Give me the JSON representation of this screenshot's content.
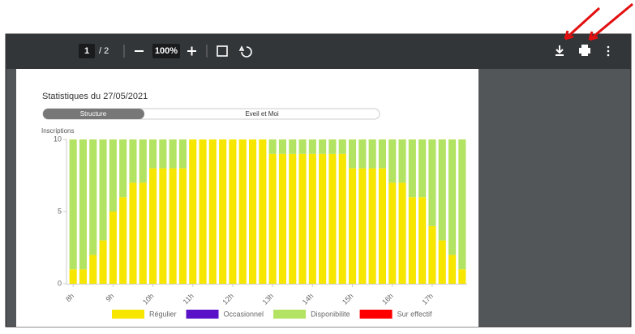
{
  "toolbar": {
    "page": "1",
    "page_count": "/ 2",
    "zoom": "100%"
  },
  "tabs": [
    "Structure",
    "Eveil et Moi"
  ],
  "chart_data": {
    "type": "bar",
    "stacked": true,
    "title": "Statistiques du 27/05/2021",
    "y_label": "Inscriptions",
    "categories": [
      "8h",
      null,
      null,
      null,
      "9h",
      null,
      null,
      null,
      "10h",
      null,
      null,
      null,
      "11h",
      null,
      null,
      null,
      "12h",
      null,
      null,
      null,
      "13h",
      null,
      null,
      null,
      "14h",
      null,
      null,
      null,
      "15h",
      null,
      null,
      null,
      "16h",
      null,
      null,
      null,
      "17h",
      null,
      null,
      null
    ],
    "series": [
      {
        "name": "Régulier",
        "color": "#f7e600",
        "values": [
          1,
          1,
          2,
          3,
          5,
          6,
          7,
          7,
          8,
          8,
          8,
          8,
          10,
          10,
          10,
          10,
          10,
          10,
          10,
          10,
          9,
          9,
          9,
          9,
          9,
          9,
          9,
          9,
          8,
          8,
          8,
          8,
          7,
          7,
          6,
          6,
          4,
          3,
          2,
          1
        ]
      },
      {
        "name": "Occasionnel",
        "color": "#5a12c8",
        "values": [
          0,
          0,
          0,
          0,
          0,
          0,
          0,
          0,
          0,
          0,
          0,
          0,
          0,
          0,
          0,
          0,
          0,
          0,
          0,
          0,
          0,
          0,
          0,
          0,
          0,
          0,
          0,
          0,
          0,
          0,
          0,
          0,
          0,
          0,
          0,
          0,
          0,
          0,
          0,
          0
        ]
      },
      {
        "name": "Disponibilite",
        "color": "#b3e362",
        "values": [
          9,
          9,
          8,
          7,
          5,
          4,
          3,
          3,
          2,
          2,
          2,
          2,
          0,
          0,
          0,
          0,
          0,
          0,
          0,
          0,
          1,
          1,
          1,
          1,
          1,
          1,
          1,
          1,
          2,
          2,
          2,
          2,
          3,
          3,
          4,
          4,
          6,
          7,
          8,
          9
        ]
      },
      {
        "name": "Sur effectif",
        "color": "#ff0000",
        "values": [
          0,
          0,
          0,
          0,
          0,
          0,
          0,
          0,
          0,
          0,
          0,
          0,
          0,
          0,
          0,
          0,
          0,
          0,
          0,
          0,
          0,
          0,
          0,
          0,
          0,
          0,
          0,
          0,
          0,
          0,
          0,
          0,
          0,
          0,
          0,
          0,
          0,
          0,
          0,
          0
        ]
      }
    ],
    "ylim": [
      0,
      10
    ],
    "yticks": [
      0,
      5,
      10
    ],
    "grid": false
  }
}
